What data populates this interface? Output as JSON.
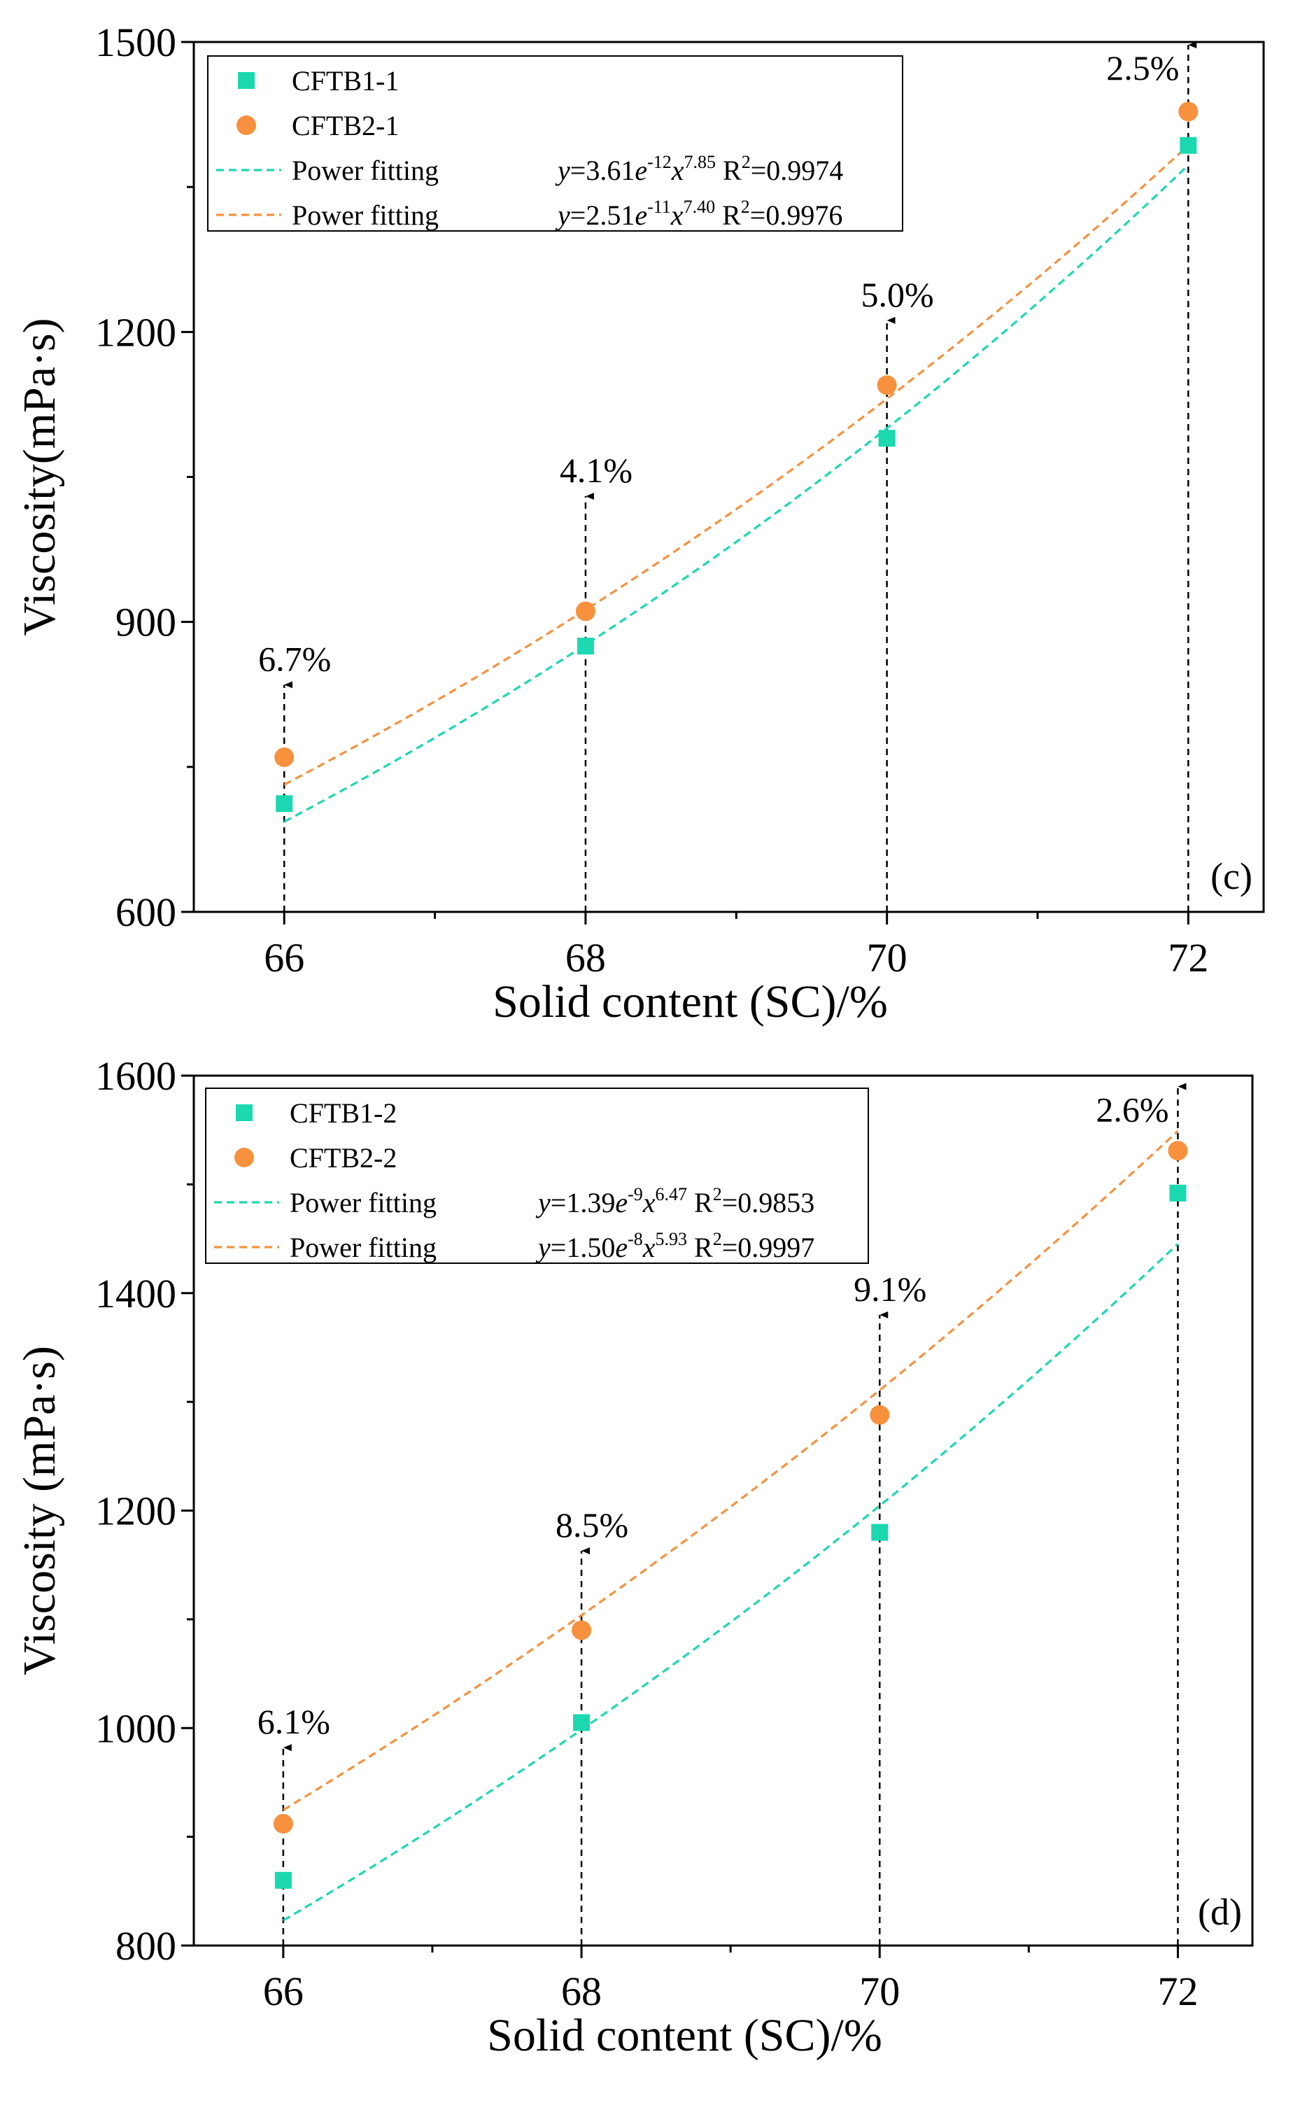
{
  "colors": {
    "series1": "#1bd8b0",
    "series2": "#f7913d",
    "axis": "#000000",
    "background": "#ffffff"
  },
  "chart_data": [
    {
      "type": "scatter",
      "panel_label": "(c)",
      "xlabel": "Solid content (SC)/%",
      "ylabel": "Viscosity(mPa·s)",
      "xlim": [
        65.4,
        72.5
      ],
      "ylim": [
        600,
        1500
      ],
      "xticks": [
        66,
        68,
        70,
        72
      ],
      "xtick_labels": [
        "66",
        "68",
        "70",
        "72"
      ],
      "yticks": [
        600,
        900,
        1200,
        1500
      ],
      "ytick_labels": [
        "600",
        "900",
        "1200",
        "1500"
      ],
      "y_minor_step": 150,
      "legend_position": "top-left",
      "series": [
        {
          "name": "CFTB1-1",
          "marker": "square",
          "color_key": "series1",
          "x": [
            66,
            68,
            70,
            72
          ],
          "y": [
            712,
            875,
            1090,
            1393
          ]
        },
        {
          "name": "CFTB2-1",
          "marker": "circle",
          "color_key": "series2",
          "x": [
            66,
            68,
            70,
            72
          ],
          "y": [
            760,
            911,
            1145,
            1428
          ]
        }
      ],
      "fits": [
        {
          "label": "Power fitting",
          "color_key": "series1",
          "a": 3.61e-12,
          "b": 7.85,
          "eq_coef": "3.61",
          "eq_exp": "-12",
          "eq_pow": "7.85",
          "r2": "0.9974"
        },
        {
          "label": "Power fitting",
          "color_key": "series2",
          "a": 2.51e-11,
          "b": 7.4,
          "eq_coef": "2.51",
          "eq_exp": "-11",
          "eq_pow": "7.40",
          "r2": "0.9976"
        }
      ],
      "annotations": [
        {
          "x": 66,
          "arrow_top": 835,
          "text": "6.7%"
        },
        {
          "x": 68,
          "arrow_top": 1030,
          "text": "4.1%"
        },
        {
          "x": 70,
          "arrow_top": 1212,
          "text": "5.0%"
        },
        {
          "x": 72,
          "arrow_top": 1497,
          "text": "2.5%"
        }
      ]
    },
    {
      "type": "scatter",
      "panel_label": "(d)",
      "xlabel": "Solid content (SC)/%",
      "ylabel": "Viscosity (mPa·s)",
      "xlim": [
        65.4,
        72.5
      ],
      "ylim": [
        800,
        1600
      ],
      "xticks": [
        66,
        68,
        70,
        72
      ],
      "xtick_labels": [
        "66",
        "68",
        "70",
        "72"
      ],
      "yticks": [
        800,
        1000,
        1200,
        1400,
        1600
      ],
      "ytick_labels": [
        "800",
        "1000",
        "1200",
        "1400",
        "1600"
      ],
      "y_minor_step": 100,
      "legend_position": "top-left",
      "series": [
        {
          "name": "CFTB1-2",
          "marker": "square",
          "color_key": "series1",
          "x": [
            66,
            68,
            70,
            72
          ],
          "y": [
            860,
            1005,
            1180,
            1492
          ]
        },
        {
          "name": "CFTB2-2",
          "marker": "circle",
          "color_key": "series2",
          "x": [
            66,
            68,
            70,
            72
          ],
          "y": [
            912,
            1090,
            1288,
            1531
          ]
        }
      ],
      "fits": [
        {
          "label": "Power fitting",
          "color_key": "series1",
          "a": 1.39e-09,
          "b": 6.47,
          "eq_coef": "1.39",
          "eq_exp": "-9",
          "eq_pow": "6.47",
          "r2": "0.9853"
        },
        {
          "label": "Power fitting",
          "color_key": "series2",
          "a": 1.5e-08,
          "b": 5.93,
          "eq_coef": "1.50",
          "eq_exp": "-8",
          "eq_pow": "5.93",
          "r2": "0.9997"
        }
      ],
      "annotations": [
        {
          "x": 66,
          "arrow_top": 982,
          "text": "6.1%"
        },
        {
          "x": 68,
          "arrow_top": 1163,
          "text": "8.5%"
        },
        {
          "x": 70,
          "arrow_top": 1380,
          "text": "9.1%"
        },
        {
          "x": 72,
          "arrow_top": 1590,
          "text": "2.6%"
        }
      ]
    }
  ]
}
